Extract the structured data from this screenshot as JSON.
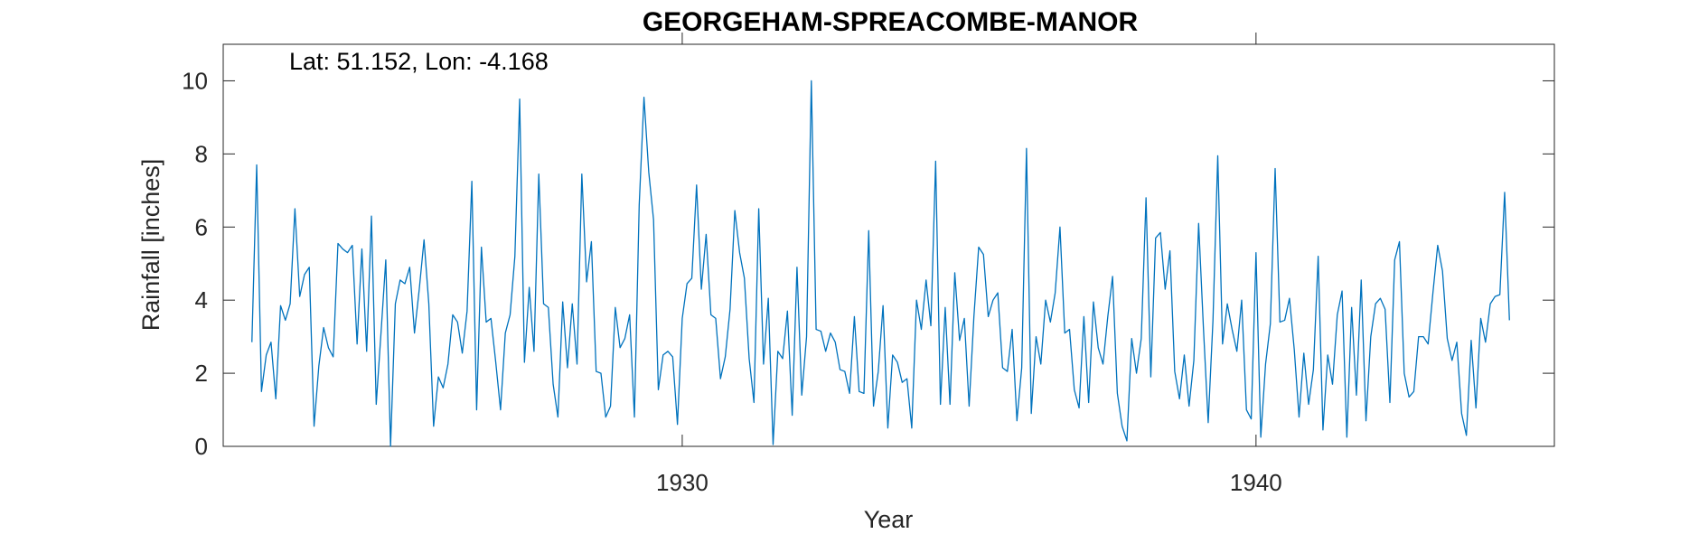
{
  "chart_data": {
    "type": "line",
    "title": "GEORGEHAM-SPREACOMBE-MANOR",
    "annotation": "Lat: 51.152, Lon: -4.168",
    "xlabel": "Year",
    "ylabel": "Rainfall [inches]",
    "xlim": [
      1922.0,
      1945.2
    ],
    "ylim": [
      0,
      11
    ],
    "xticks": [
      1930,
      1940
    ],
    "xtick_labels": [
      "1930",
      "1940"
    ],
    "yticks": [
      0,
      2,
      4,
      6,
      8,
      10
    ],
    "ytick_labels": [
      "0",
      "2",
      "4",
      "6",
      "8",
      "10"
    ],
    "grid": false,
    "line_color": "#0072BD",
    "x_start": 1922.5,
    "x_step_months": 1,
    "series": [
      {
        "values": [
          2.85,
          7.7,
          1.5,
          2.5,
          2.85,
          1.3,
          3.85,
          3.45,
          3.9,
          6.5,
          4.1,
          4.7,
          4.9,
          0.55,
          2.2,
          3.25,
          2.7,
          2.45,
          5.55,
          5.4,
          5.3,
          5.5,
          2.8,
          5.4,
          2.6,
          6.3,
          1.15,
          3.1,
          5.1,
          0.0,
          3.9,
          4.55,
          4.45,
          4.9,
          3.1,
          4.3,
          5.65,
          3.9,
          0.55,
          1.9,
          1.6,
          2.25,
          3.6,
          3.4,
          2.55,
          3.7,
          7.25,
          1.0,
          5.45,
          3.4,
          3.5,
          2.3,
          1.0,
          3.1,
          3.6,
          5.2,
          9.5,
          2.3,
          4.35,
          2.6,
          7.45,
          3.9,
          3.8,
          1.7,
          0.8,
          3.95,
          2.15,
          3.9,
          2.25,
          7.45,
          4.5,
          5.6,
          2.05,
          2.0,
          0.8,
          1.1,
          3.8,
          2.7,
          2.95,
          3.6,
          0.8,
          6.6,
          9.55,
          7.5,
          6.2,
          1.55,
          2.5,
          2.6,
          2.45,
          0.6,
          3.5,
          4.45,
          4.6,
          7.15,
          4.3,
          5.8,
          3.6,
          3.5,
          1.85,
          2.45,
          3.75,
          6.45,
          5.3,
          4.6,
          2.4,
          1.2,
          6.5,
          2.25,
          4.05,
          0.05,
          2.6,
          2.4,
          3.7,
          0.85,
          4.9,
          1.4,
          3.0,
          10.0,
          3.2,
          3.15,
          2.6,
          3.1,
          2.85,
          2.1,
          2.05,
          1.45,
          3.55,
          1.5,
          1.45,
          5.9,
          1.1,
          2.05,
          3.85,
          0.5,
          2.5,
          2.3,
          1.75,
          1.85,
          0.5,
          4.0,
          3.2,
          4.55,
          3.3,
          7.8,
          1.15,
          3.8,
          1.15,
          4.75,
          2.9,
          3.5,
          1.1,
          3.55,
          5.45,
          5.25,
          3.55,
          4.0,
          4.2,
          2.15,
          2.05,
          3.2,
          0.7,
          2.15,
          8.15,
          0.9,
          3.0,
          2.25,
          4.0,
          3.4,
          4.2,
          6.0,
          3.1,
          3.2,
          1.55,
          1.05,
          3.55,
          1.2,
          3.95,
          2.7,
          2.25,
          3.55,
          4.65,
          1.45,
          0.55,
          0.15,
          2.95,
          2.0,
          2.95,
          6.8,
          1.9,
          5.7,
          5.85,
          4.3,
          5.35,
          2.05,
          1.3,
          2.5,
          1.1,
          2.35,
          6.1,
          3.25,
          0.65,
          3.45,
          7.95,
          2.8,
          3.9,
          3.2,
          2.6,
          4.0,
          1.0,
          0.75,
          5.3,
          0.25,
          2.25,
          3.35,
          7.6,
          3.4,
          3.45,
          4.05,
          2.65,
          0.8,
          2.55,
          1.15,
          2.1,
          5.2,
          0.45,
          2.5,
          1.7,
          3.6,
          4.25,
          0.25,
          3.8,
          1.4,
          4.55,
          0.7,
          3.0,
          3.9,
          4.05,
          3.75,
          1.2,
          5.1,
          5.6,
          2.0,
          1.35,
          1.5,
          3.0,
          3.0,
          2.8,
          4.2,
          5.5,
          4.8,
          2.95,
          2.35,
          2.85,
          0.9,
          0.3,
          2.9,
          1.05,
          3.5,
          2.85,
          3.9,
          4.1,
          4.15,
          6.95,
          3.45
        ]
      }
    ]
  }
}
